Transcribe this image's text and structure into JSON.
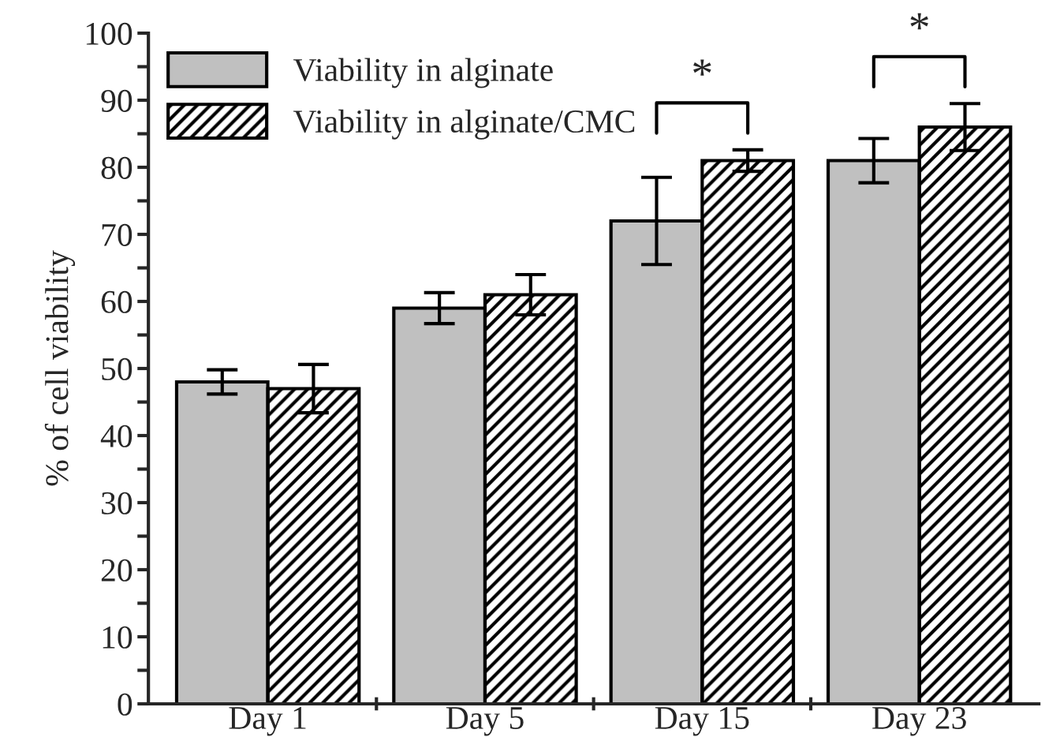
{
  "chart_data": {
    "type": "bar",
    "ylabel": "% of cell viability",
    "categories": [
      "Day 1",
      "Day 5",
      "Day 15",
      "Day 23"
    ],
    "series": [
      {
        "name": "Viability in alginate",
        "color": "#c0c0c0",
        "values": [
          48,
          59,
          72,
          81
        ],
        "errors": [
          1.8,
          2.3,
          6.5,
          3.3
        ]
      },
      {
        "name": "Viability in alginate/CMC",
        "color": "#000000",
        "values": [
          47,
          61,
          81,
          86
        ],
        "errors": [
          3.6,
          3,
          1.6,
          3.5
        ]
      }
    ],
    "ylim": [
      0,
      100
    ],
    "yticks": [
      0,
      {
        "value": 5,
        "label": null
      },
      10,
      {
        "value": 15,
        "label": null
      },
      20,
      {
        "value": 25,
        "label": null
      },
      30,
      {
        "value": 35,
        "label": null
      },
      40,
      {
        "value": 45,
        "label": null
      },
      50,
      {
        "value": 55,
        "label": null
      },
      60,
      {
        "value": 65,
        "label": null
      },
      70,
      {
        "value": 75,
        "label": null
      },
      80,
      {
        "value": 85,
        "label": null
      },
      90,
      {
        "value": 95,
        "label": null
      },
      100
    ],
    "annotations": [
      "*",
      "*"
    ],
    "grid": false,
    "legend": "top left"
  }
}
